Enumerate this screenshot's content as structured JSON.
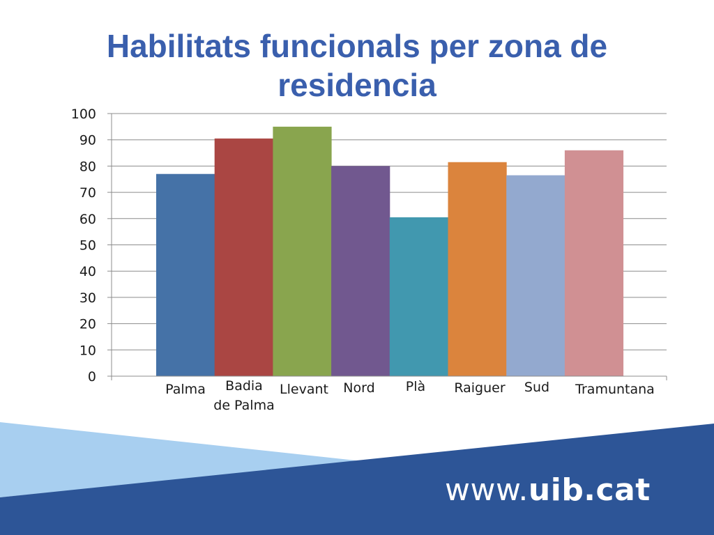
{
  "slide": {
    "title": "Habilitats funcionals per zona de residencia"
  },
  "chart_data": {
    "type": "bar",
    "title": "Habilitats funcionals per zona de residencia",
    "xlabel": "",
    "ylabel": "",
    "ylim": [
      0,
      100
    ],
    "yticks": [
      "0",
      "10",
      "20",
      "30",
      "40",
      "50",
      "60",
      "70",
      "80",
      "90",
      "100"
    ],
    "grid": true,
    "categories": [
      "Palma",
      "Badia de Palma",
      "Llevant",
      "Nord",
      "Plà",
      "Raiguer",
      "Sud",
      "Tramuntana"
    ],
    "category_lines": [
      [
        "Palma"
      ],
      [
        "Badia",
        "de Palma"
      ],
      [
        "Llevant"
      ],
      [
        "Nord"
      ],
      [
        "Plà"
      ],
      [
        "Raiguer"
      ],
      [
        "Sud"
      ],
      [
        "Tramuntana"
      ]
    ],
    "values": [
      77,
      90.5,
      95,
      80,
      60.5,
      81.5,
      76.5,
      86
    ],
    "colors": [
      "#4572a7",
      "#aa4643",
      "#89a54e",
      "#71588f",
      "#4198af",
      "#db843d",
      "#93a9cf",
      "#d09093"
    ]
  },
  "footer": {
    "url_prefix": "www.",
    "url_domain": "uib.cat",
    "colors": {
      "dark_band": "#2d5597",
      "light_band": "#a8cff0"
    }
  }
}
